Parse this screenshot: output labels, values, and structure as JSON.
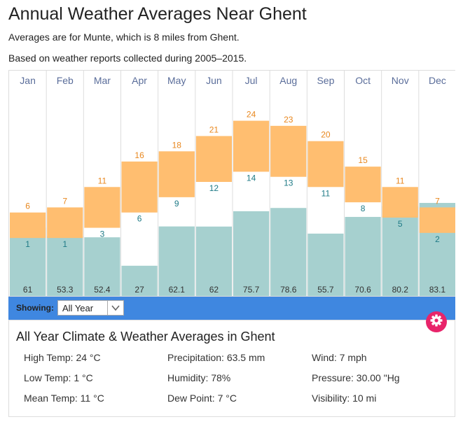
{
  "page": {
    "title": "Annual Weather Averages Near Ghent",
    "subtitle": "Averages are for Munte, which is 8 miles from Ghent.",
    "note": "Based on weather reports collected during 2005–2015."
  },
  "chart_data": {
    "type": "bar",
    "categories": [
      "Jan",
      "Feb",
      "Mar",
      "Apr",
      "May",
      "Jun",
      "Jul",
      "Aug",
      "Sep",
      "Oct",
      "Nov",
      "Dec"
    ],
    "series": [
      {
        "name": "",
        "kind": "temp-high",
        "values": [
          6,
          7,
          11,
          16,
          18,
          21,
          24,
          23,
          20,
          15,
          11,
          7
        ]
      },
      {
        "name": "",
        "kind": "temp-low",
        "values": [
          1,
          1,
          3,
          6,
          9,
          12,
          14,
          13,
          11,
          8,
          5,
          2
        ]
      },
      {
        "name": "",
        "kind": "precipitation",
        "values": [
          61,
          53.3,
          52.4,
          27,
          62.1,
          62,
          75.7,
          78.6,
          55.7,
          70.6,
          80.2,
          83.1
        ]
      }
    ],
    "colors": {
      "temp_band": "#ffbe70",
      "high_label": "#e8871e",
      "low_label": "#1e7a86",
      "precip_bar": "#a6d0cf",
      "month_label": "#5a6d9a"
    },
    "temp_range": [
      -9,
      33
    ],
    "precip_range": [
      0,
      110
    ],
    "title": "",
    "xlabel": "",
    "ylabel": "",
    "grid": true
  },
  "showing": {
    "label": "Showing:",
    "selected": "All Year",
    "chevron_icon": "chevron-down-icon"
  },
  "settings": {
    "icon": "gear-icon",
    "color": "#e8246a"
  },
  "summary": {
    "title": "All Year Climate & Weather Averages in Ghent",
    "col1": [
      "High Temp: 24 °C",
      "Low Temp: 1 °C",
      "Mean Temp: 11 °C"
    ],
    "col2": [
      "Precipitation: 63.5 mm",
      "Humidity: 78%",
      "Dew Point: 7 °C"
    ],
    "col3": [
      "Wind: 7 mph",
      "Pressure: 30.00 \"Hg",
      "Visibility: 10 mi"
    ]
  }
}
